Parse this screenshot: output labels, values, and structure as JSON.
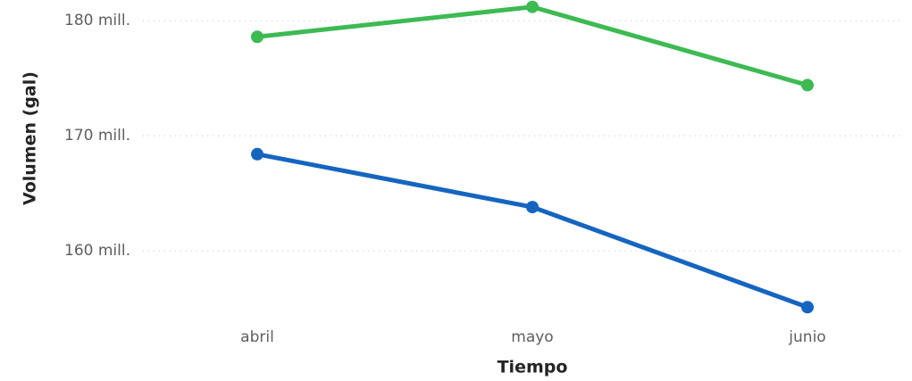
{
  "chart_data": {
    "type": "line",
    "x_label": "Tiempo",
    "y_label": "Volumen (gal)",
    "categories": [
      "abril",
      "mayo",
      "junio"
    ],
    "series": [
      {
        "color": "#3dba52",
        "values": [
          178600000,
          181200000,
          174400000
        ]
      },
      {
        "color": "#1565c0",
        "values": [
          168400000,
          163800000,
          155100000
        ]
      }
    ],
    "ylim": [
      154500000,
      181800000
    ],
    "yticks": [
      {
        "value": 160000000,
        "label": "160 mill."
      },
      {
        "value": 170000000,
        "label": "170 mill."
      },
      {
        "value": 180000000,
        "label": "180 mill."
      }
    ],
    "grid": true
  }
}
